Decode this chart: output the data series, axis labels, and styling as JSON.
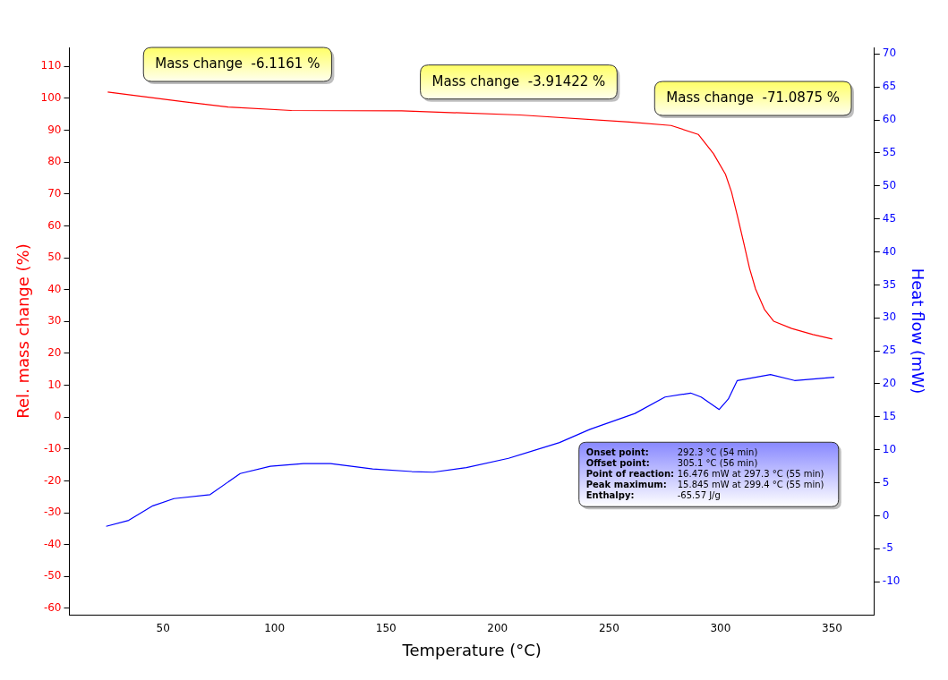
{
  "chart_data": {
    "type": "line",
    "xlabel": "Temperature (°C)",
    "ylabel": "Rel. mass change (%)",
    "y2label": "Heat flow (mW)",
    "xlim": [
      8,
      369
    ],
    "xticks": [
      50,
      100,
      150,
      200,
      250,
      300,
      350
    ],
    "ylim": [
      -62,
      116
    ],
    "yticks": [
      -60,
      -50,
      -40,
      -30,
      -20,
      -10,
      0,
      10,
      20,
      30,
      40,
      50,
      60,
      70,
      80,
      90,
      100,
      110
    ],
    "y2lim": [
      -15,
      71
    ],
    "y2ticks": [
      -10,
      -5,
      0,
      5,
      10,
      15,
      20,
      25,
      30,
      35,
      40,
      45,
      50,
      55,
      60,
      65,
      70
    ],
    "grid": false,
    "legend": false,
    "marker": "none",
    "line_style": "solid",
    "series": [
      {
        "color": "#ff0000",
        "x": [
          25.2,
          59,
          79.2,
          107.6,
          157,
          210,
          259,
          277.8,
          290,
          296.8,
          302.2,
          304.9,
          307.5,
          310.3,
          313,
          315.7,
          319.7,
          323.8,
          331.9,
          341.4,
          350.1
        ],
        "values": [
          102.0,
          99.0,
          97.3,
          96.2,
          96.1,
          94.8,
          92.6,
          91.5,
          88.7,
          82.7,
          76.2,
          70.7,
          63.3,
          55.0,
          46.7,
          40.2,
          33.8,
          30.1,
          27.8,
          25.9,
          24.5
        ]
      },
      {
        "color": "#0000ff",
        "axis": "y2",
        "x": [
          24.5,
          34.6,
          45.4,
          54.9,
          71.1,
          84.6,
          98.1,
          113,
          125.1,
          144,
          161.6,
          171.1,
          186,
          204.9,
          227.8,
          241.4,
          261.6,
          275.1,
          286.6,
          291.3,
          299.4,
          303.5,
          307.5,
          322.4,
          333.2,
          351
        ],
        "values": [
          -1.6,
          -0.7,
          1.5,
          2.6,
          3.2,
          6.4,
          7.5,
          7.9,
          7.9,
          7.1,
          6.7,
          6.6,
          7.3,
          8.7,
          11.1,
          13.1,
          15.5,
          18.0,
          18.6,
          18.0,
          16.1,
          17.7,
          20.5,
          21.4,
          20.5,
          21.0
        ]
      }
    ],
    "annotations": [
      "Mass change  -6.1161 %",
      "Mass change  -3.91422 %",
      "Mass change  -71.0875 %",
      "Onset point:\t292.3 °C (54 min)\nOffset point:\t305.1 °C (56 min)\nPoint of reaction:\t16.476 mW at 297.3 °C (55 min)\nPeak maximum:\t15.845 mW at 299.4 °C (55 min)\nEnthalpy:\t-65.57 J/g"
    ]
  }
}
